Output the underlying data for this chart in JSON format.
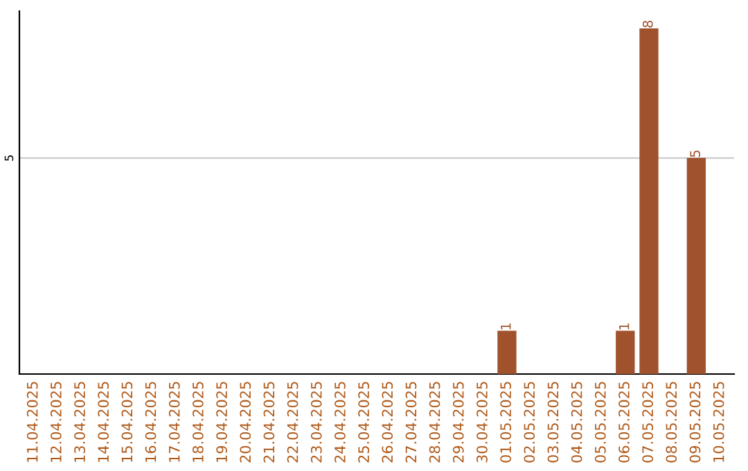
{
  "chart_data": {
    "type": "bar",
    "categories": [
      "11.04.2025",
      "12.04.2025",
      "13.04.2025",
      "14.04.2025",
      "15.04.2025",
      "16.04.2025",
      "17.04.2025",
      "18.04.2025",
      "19.04.2025",
      "20.04.2025",
      "21.04.2025",
      "22.04.2025",
      "23.04.2025",
      "24.04.2025",
      "25.04.2025",
      "26.04.2025",
      "27.04.2025",
      "28.04.2025",
      "29.04.2025",
      "30.04.2025",
      "01.05.2025",
      "02.05.2025",
      "03.05.2025",
      "04.05.2025",
      "05.05.2025",
      "06.05.2025",
      "07.05.2025",
      "08.05.2025",
      "09.05.2025",
      "10.05.2025"
    ],
    "values": [
      null,
      null,
      null,
      null,
      null,
      null,
      null,
      null,
      null,
      null,
      null,
      null,
      null,
      null,
      null,
      null,
      null,
      null,
      null,
      null,
      1,
      null,
      null,
      null,
      null,
      1,
      8,
      null,
      5,
      null
    ],
    "data_labels": true,
    "color": "#a0522d",
    "ylim": [
      0,
      8.4
    ],
    "yticks": [
      5
    ],
    "grid": "y"
  }
}
